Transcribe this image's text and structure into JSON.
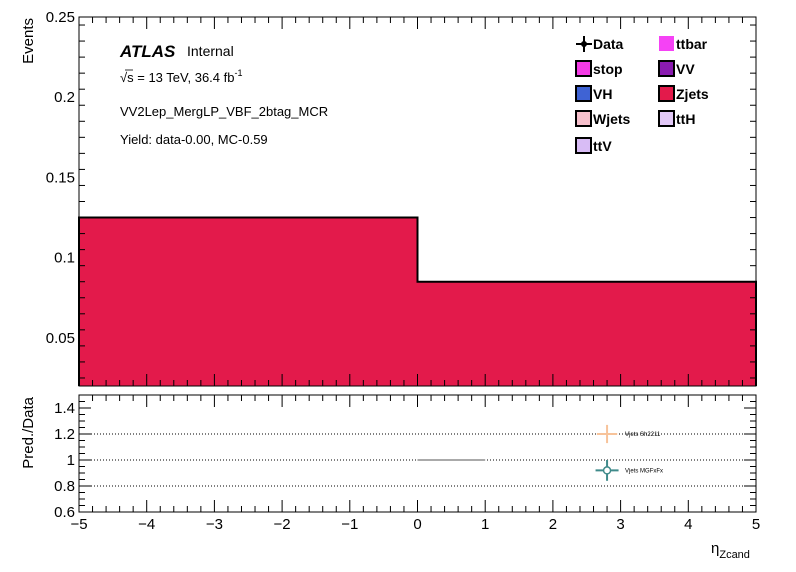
{
  "chart_data": [
    {
      "type": "bar",
      "title": "",
      "xlabel": "",
      "ylabel": "Events",
      "xlim": [
        -5,
        5
      ],
      "ylim": [
        0.02,
        0.25
      ],
      "yticks": [
        0.05,
        0.1,
        0.15,
        0.2,
        0.25
      ],
      "ytick_labels": [
        "0.05",
        "0.1",
        "0.15",
        "0.2",
        "0.25"
      ],
      "bins": [
        [
          -5,
          0
        ],
        [
          0,
          5
        ]
      ],
      "series": [
        {
          "name": "Zjets",
          "values": [
            0.125,
            0.085
          ],
          "color": "#e31a4b"
        }
      ],
      "grid": false,
      "annotations": {
        "experiment": "ATLAS",
        "status": "Internal",
        "energy_line": "s = 13 TeV, 36.4 fb",
        "energy_sqrt": "√",
        "energy_sup": "-1",
        "region": "VV2Lep_MergLP_VBF_2btag_MCR",
        "yield": "Yield: data-0.00, MC-0.59"
      },
      "legend": {
        "placement": "top-right",
        "entries": [
          {
            "name": "Data",
            "marker": "data",
            "color": "#000000"
          },
          {
            "name": "ttbar",
            "marker": "box",
            "color": "#f542f5"
          },
          {
            "name": "stop",
            "marker": "box",
            "color": "#f53be6"
          },
          {
            "name": "VV",
            "marker": "box",
            "color": "#8a1bb0"
          },
          {
            "name": "VH",
            "marker": "box",
            "color": "#3f63d4"
          },
          {
            "name": "Zjets",
            "marker": "box",
            "color": "#e31a4b"
          },
          {
            "name": "Wjets",
            "marker": "box",
            "color": "#f7c0cc"
          },
          {
            "name": "ttH",
            "marker": "box",
            "color": "#e2c8f7"
          },
          {
            "name": "ttV",
            "marker": "box",
            "color": "#d8bcf5"
          }
        ]
      }
    },
    {
      "type": "scatter",
      "title": "",
      "xlabel": "η",
      "xlabel_sub": "Zcand",
      "ylabel": "Pred./Data",
      "xlim": [
        -5,
        5
      ],
      "ylim": [
        0.6,
        1.5
      ],
      "xticks": [
        -5,
        -4,
        -3,
        -2,
        -1,
        0,
        1,
        2,
        3,
        4,
        5
      ],
      "xtick_labels": [
        "−5",
        "−4",
        "−3",
        "−2",
        "−1",
        "0",
        "1",
        "2",
        "3",
        "4",
        "5"
      ],
      "yticks": [
        0.6,
        0.8,
        1,
        1.2,
        1.4
      ],
      "ytick_labels": [
        "0.6",
        "0.8",
        "1",
        "1.2",
        "1.4"
      ],
      "reference_lines": [
        0.8,
        1.0,
        1.2
      ],
      "unity_segment": {
        "x": [
          0,
          1
        ],
        "y": 1.0,
        "color": "#aaaaaa"
      },
      "series": [
        {
          "name": "Vjets Sh2211",
          "x": 2.8,
          "y": 1.2,
          "xerr": 0.15,
          "yerr": 0.07,
          "color": "#f7c39a",
          "marker": "cross"
        },
        {
          "name": "Vjets MGFxFx",
          "x": 2.8,
          "y": 0.92,
          "xerr": 0.17,
          "yerr": 0.08,
          "color": "#3f8a8a",
          "marker": "circle"
        }
      ]
    }
  ]
}
